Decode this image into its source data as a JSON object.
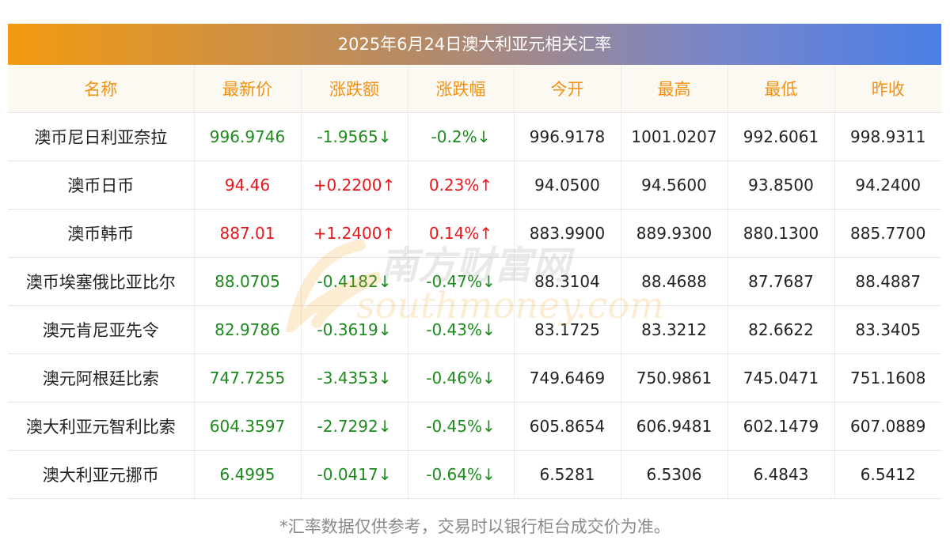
{
  "title": "2025年6月24日澳大利亚元相关汇率",
  "columns": [
    "名称",
    "最新价",
    "涨跌额",
    "涨跌幅",
    "今开",
    "最高",
    "最低",
    "昨收"
  ],
  "rows": [
    {
      "name": "澳币尼日利亚奈拉",
      "latest": "996.9746",
      "change": "-1.9565↓",
      "pct": "-0.2%↓",
      "open": "996.9178",
      "high": "1001.0207",
      "low": "992.6061",
      "prev": "998.9311",
      "dir": "down"
    },
    {
      "name": "澳币日币",
      "latest": "94.46",
      "change": "+0.2200↑",
      "pct": "0.23%↑",
      "open": "94.0500",
      "high": "94.5600",
      "low": "93.8500",
      "prev": "94.2400",
      "dir": "up"
    },
    {
      "name": "澳币韩币",
      "latest": "887.01",
      "change": "+1.2400↑",
      "pct": "0.14%↑",
      "open": "883.9900",
      "high": "889.9300",
      "low": "880.1300",
      "prev": "885.7700",
      "dir": "up"
    },
    {
      "name": "澳币埃塞俄比亚比尔",
      "latest": "88.0705",
      "change": "-0.4182↓",
      "pct": "-0.47%↓",
      "open": "88.3104",
      "high": "88.4688",
      "low": "87.7687",
      "prev": "88.4887",
      "dir": "down"
    },
    {
      "name": "澳元肯尼亚先令",
      "latest": "82.9786",
      "change": "-0.3619↓",
      "pct": "-0.43%↓",
      "open": "83.1725",
      "high": "83.3212",
      "low": "82.6622",
      "prev": "83.3405",
      "dir": "down"
    },
    {
      "name": "澳元阿根廷比索",
      "latest": "747.7255",
      "change": "-3.4353↓",
      "pct": "-0.46%↓",
      "open": "749.6469",
      "high": "750.9861",
      "low": "745.0471",
      "prev": "751.1608",
      "dir": "down"
    },
    {
      "name": "澳大利亚元智利比索",
      "latest": "604.3597",
      "change": "-2.7292↓",
      "pct": "-0.45%↓",
      "open": "605.8654",
      "high": "606.9481",
      "low": "602.1479",
      "prev": "607.0889",
      "dir": "down"
    },
    {
      "name": "澳大利亚元挪币",
      "latest": "6.4995",
      "change": "-0.0417↓",
      "pct": "-0.64%↓",
      "open": "6.5281",
      "high": "6.5306",
      "low": "6.4843",
      "prev": "6.5412",
      "dir": "down"
    }
  ],
  "colors": {
    "up": "#e8161b",
    "down": "#1c8a1c",
    "header_text": "#f29112"
  },
  "watermark": {
    "cn": "南方财富网",
    "en": "southmoney.com"
  },
  "note": "*汇率数据仅供参考，交易时以银行柜台成交价为准。"
}
